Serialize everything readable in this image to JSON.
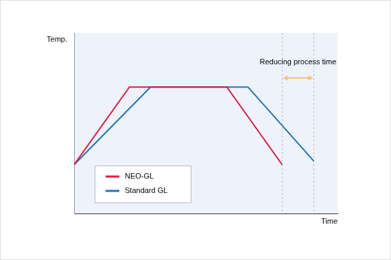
{
  "chart_data": {
    "type": "line",
    "x_label": "Time",
    "y_label": "Temp.",
    "xlim": [
      0,
      100
    ],
    "ylim": [
      0,
      100
    ],
    "xticks": [],
    "yticks": [],
    "tick_labels": false,
    "grid": false,
    "legend": "lower left",
    "series": [
      {
        "name": "NEO-GL",
        "color": "#e5163f",
        "x": [
          0,
          21,
          58,
          79
        ],
        "values": [
          27,
          70,
          70,
          27
        ]
      },
      {
        "name": "Standard GL",
        "color": "#1a75bb",
        "x": [
          0,
          29,
          66,
          91
        ],
        "values": [
          27,
          70,
          70,
          29
        ]
      }
    ],
    "annotations": [
      {
        "text": "Reducing process time",
        "x_start": 79,
        "x_end": 91,
        "y": 75,
        "color": "#f5c27a"
      }
    ],
    "vlines": [
      79,
      91
    ]
  }
}
